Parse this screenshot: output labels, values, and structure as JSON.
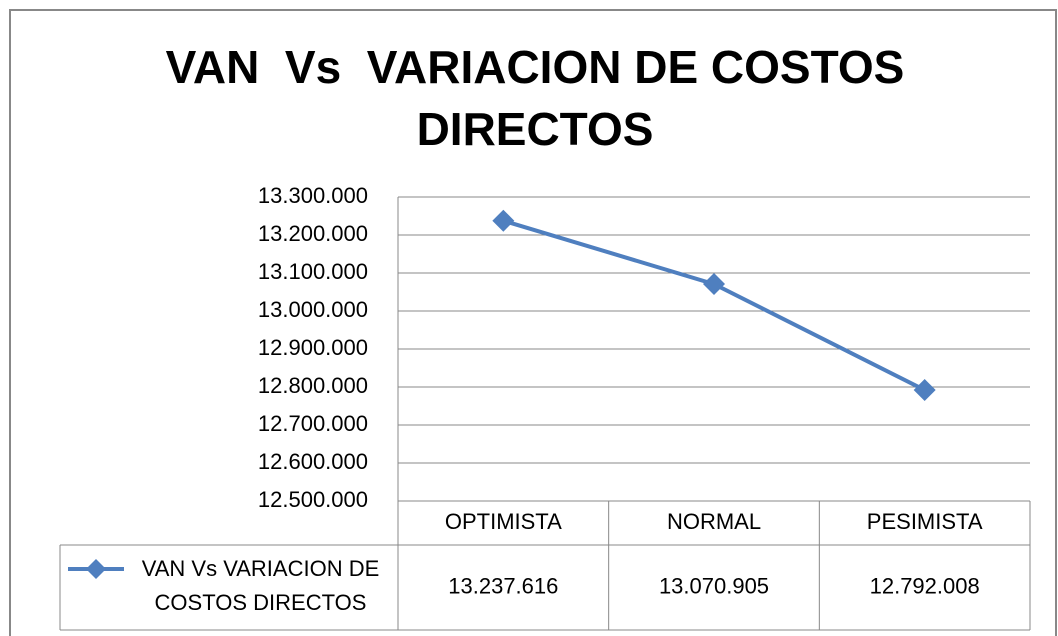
{
  "chart_data": {
    "type": "line",
    "title": "VAN  Vs  VARIACION DE COSTOS DIRECTOS",
    "categories": [
      "OPTIMISTA",
      "NORMAL",
      "PESIMISTA"
    ],
    "series": [
      {
        "name": "VAN Vs VARIACION DE COSTOS DIRECTOS",
        "color": "#4f7fbf",
        "values": [
          13237616,
          13070905,
          12792008
        ],
        "value_labels": [
          "13.237.616",
          "13.070.905",
          "12.792.008"
        ]
      }
    ],
    "ylim": [
      12500000,
      13300000
    ],
    "yticks": [
      {
        "value": 12500000,
        "label": "12.500.000"
      },
      {
        "value": 12600000,
        "label": "12.600.000"
      },
      {
        "value": 12700000,
        "label": "12.700.000"
      },
      {
        "value": 12800000,
        "label": "12.800.000"
      },
      {
        "value": 12900000,
        "label": "12.900.000"
      },
      {
        "value": 13000000,
        "label": "13.000.000"
      },
      {
        "value": 13100000,
        "label": "13.100.000"
      },
      {
        "value": 13200000,
        "label": "13.200.000"
      },
      {
        "value": 13300000,
        "label": "13.300.000"
      }
    ],
    "grid": true,
    "legend": "bottom-left"
  }
}
